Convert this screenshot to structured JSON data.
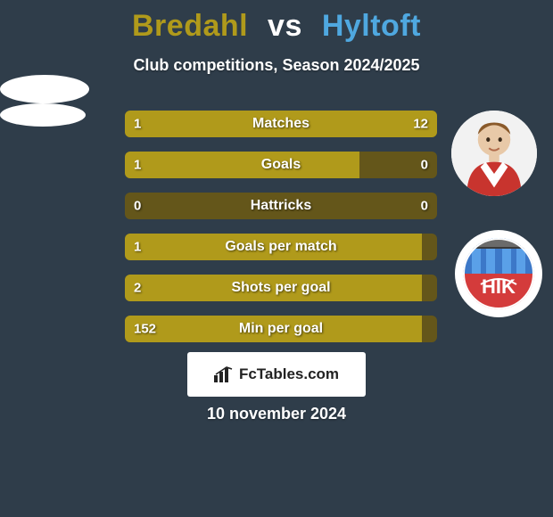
{
  "background_color": "#2f3d4a",
  "title": {
    "player_a": "Bredahl",
    "sep": "vs",
    "player_b": "Hyltoft",
    "color_a": "#b09a1b",
    "color_vs": "#ffffff",
    "color_b": "#4fa8e0"
  },
  "subtitle": "Club competitions, Season 2024/2025",
  "bar_style": {
    "track_color": "#64561a",
    "fill_left_color": "#b09a1b",
    "fill_right_color": "#b09a1b",
    "height": 30,
    "radius": 6,
    "label_fontsize": 16,
    "value_fontsize": 15,
    "text_color": "#ffffff"
  },
  "bars": [
    {
      "label": "Matches",
      "left_value": "1",
      "right_value": "12",
      "left_pct": 8,
      "right_pct": 92
    },
    {
      "label": "Goals",
      "left_value": "1",
      "right_value": "0",
      "left_pct": 75,
      "right_pct": 0
    },
    {
      "label": "Hattricks",
      "left_value": "0",
      "right_value": "0",
      "left_pct": 0,
      "right_pct": 0
    },
    {
      "label": "Goals per match",
      "left_value": "1",
      "right_value": "",
      "left_pct": 95,
      "right_pct": 0
    },
    {
      "label": "Shots per goal",
      "left_value": "2",
      "right_value": "",
      "left_pct": 95,
      "right_pct": 0
    },
    {
      "label": "Min per goal",
      "left_value": "152",
      "right_value": "",
      "left_pct": 95,
      "right_pct": 0
    }
  ],
  "club_badge": {
    "ring_color": "#ffffff",
    "top_color": "#3c78c8",
    "bottom_color": "#d43b3b",
    "stripe_color": "#5aa0e8",
    "letters": "HIK",
    "letter_color": "#ffffff"
  },
  "fctables": {
    "icon_name": "bar-chart-icon",
    "label": "FcTables.com",
    "background": "#ffffff",
    "text_color": "#222222"
  },
  "footer_date": "10 november 2024"
}
